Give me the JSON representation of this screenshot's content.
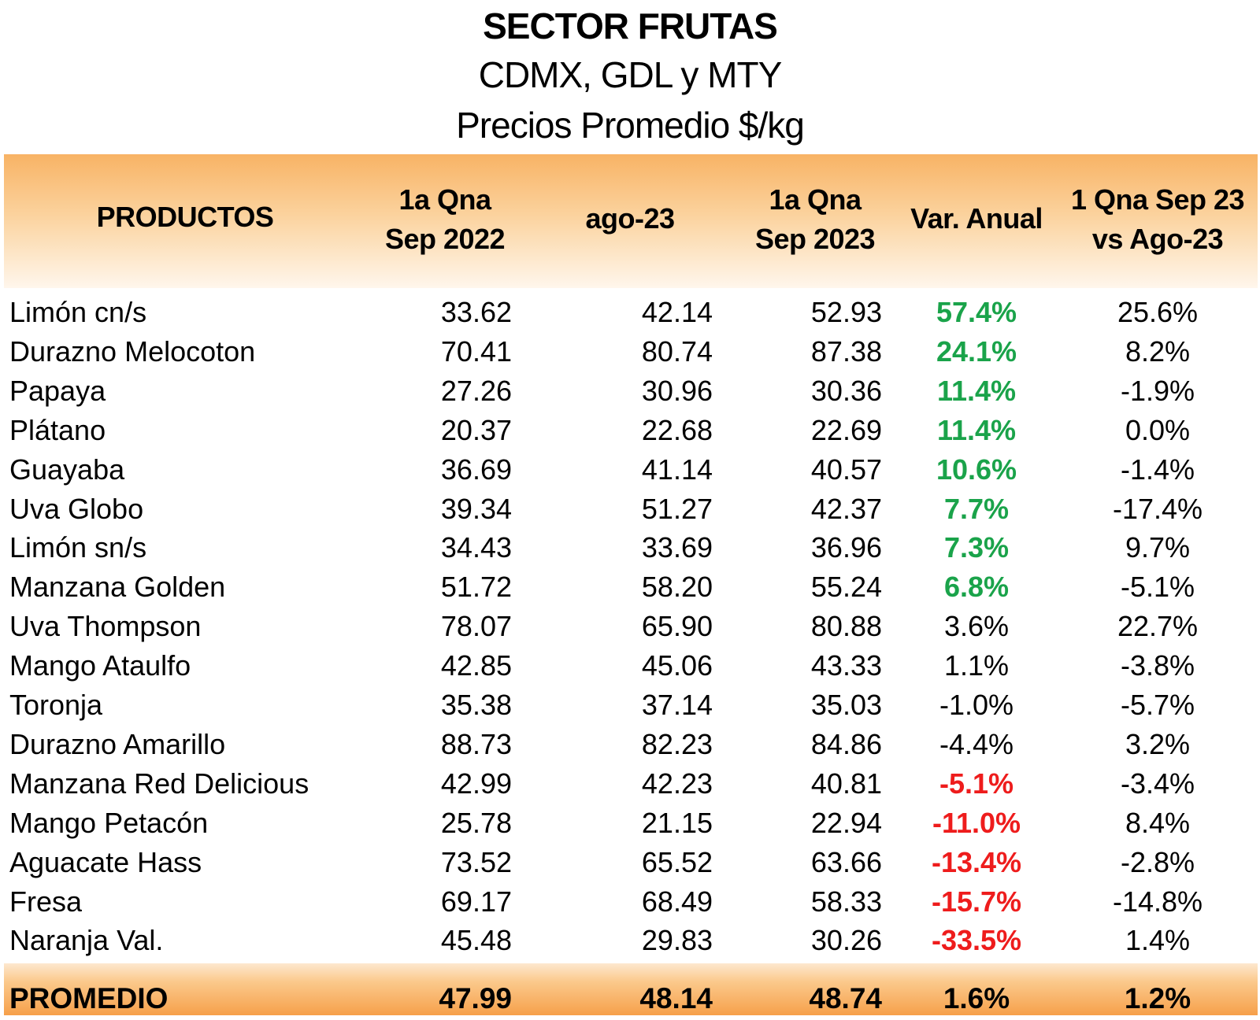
{
  "titles": {
    "line1": "SECTOR FRUTAS",
    "line2": "CDMX, GDL y MTY",
    "line3": "Precios Promedio $/kg"
  },
  "header": {
    "productos": "PRODUCTOS",
    "col1_line1": "1a Qna",
    "col1_line2": "Sep 2022",
    "col2": "ago-23",
    "col3_line1": "1a Qna",
    "col3_line2": "Sep 2023",
    "col4": "Var. Anual",
    "col5_line1": "1 Qna Sep 23",
    "col5_line2": "vs Ago-23"
  },
  "colors": {
    "positive": "#1aa34a",
    "negative": "#ee1c1c",
    "header_band": "#f8b365",
    "footer_band": "#f6a04a"
  },
  "rows": [
    {
      "name": "Limón cn/s",
      "sep2022": "33.62",
      "ago23": "42.14",
      "sep2023": "52.93",
      "var_anual": "57.4%",
      "var_anual_style": "green",
      "vs_ago": "25.6%"
    },
    {
      "name": "Durazno Melocoton",
      "sep2022": "70.41",
      "ago23": "80.74",
      "sep2023": "87.38",
      "var_anual": "24.1%",
      "var_anual_style": "green",
      "vs_ago": "8.2%"
    },
    {
      "name": "Papaya",
      "sep2022": "27.26",
      "ago23": "30.96",
      "sep2023": "30.36",
      "var_anual": "11.4%",
      "var_anual_style": "green",
      "vs_ago": "-1.9%"
    },
    {
      "name": "Plátano",
      "sep2022": "20.37",
      "ago23": "22.68",
      "sep2023": "22.69",
      "var_anual": "11.4%",
      "var_anual_style": "green",
      "vs_ago": "0.0%"
    },
    {
      "name": "Guayaba",
      "sep2022": "36.69",
      "ago23": "41.14",
      "sep2023": "40.57",
      "var_anual": "10.6%",
      "var_anual_style": "green",
      "vs_ago": "-1.4%"
    },
    {
      "name": "Uva Globo",
      "sep2022": "39.34",
      "ago23": "51.27",
      "sep2023": "42.37",
      "var_anual": "7.7%",
      "var_anual_style": "green",
      "vs_ago": "-17.4%"
    },
    {
      "name": "Limón sn/s",
      "sep2022": "34.43",
      "ago23": "33.69",
      "sep2023": "36.96",
      "var_anual": "7.3%",
      "var_anual_style": "green",
      "vs_ago": "9.7%"
    },
    {
      "name": "Manzana Golden",
      "sep2022": "51.72",
      "ago23": "58.20",
      "sep2023": "55.24",
      "var_anual": "6.8%",
      "var_anual_style": "green",
      "vs_ago": "-5.1%"
    },
    {
      "name": "Uva Thompson",
      "sep2022": "78.07",
      "ago23": "65.90",
      "sep2023": "80.88",
      "var_anual": "3.6%",
      "var_anual_style": "plain",
      "vs_ago": "22.7%"
    },
    {
      "name": "Mango Ataulfo",
      "sep2022": "42.85",
      "ago23": "45.06",
      "sep2023": "43.33",
      "var_anual": "1.1%",
      "var_anual_style": "plain",
      "vs_ago": "-3.8%"
    },
    {
      "name": "Toronja",
      "sep2022": "35.38",
      "ago23": "37.14",
      "sep2023": "35.03",
      "var_anual": "-1.0%",
      "var_anual_style": "plain",
      "vs_ago": "-5.7%"
    },
    {
      "name": "Durazno Amarillo",
      "sep2022": "88.73",
      "ago23": "82.23",
      "sep2023": "84.86",
      "var_anual": "-4.4%",
      "var_anual_style": "plain",
      "vs_ago": "3.2%"
    },
    {
      "name": "Manzana Red Delicious",
      "sep2022": "42.99",
      "ago23": "42.23",
      "sep2023": "40.81",
      "var_anual": "-5.1%",
      "var_anual_style": "red",
      "vs_ago": "-3.4%"
    },
    {
      "name": "Mango Petacón",
      "sep2022": "25.78",
      "ago23": "21.15",
      "sep2023": "22.94",
      "var_anual": "-11.0%",
      "var_anual_style": "red",
      "vs_ago": "8.4%"
    },
    {
      "name": "Aguacate Hass",
      "sep2022": "73.52",
      "ago23": "65.52",
      "sep2023": "63.66",
      "var_anual": "-13.4%",
      "var_anual_style": "red",
      "vs_ago": "-2.8%"
    },
    {
      "name": "Fresa",
      "sep2022": "69.17",
      "ago23": "68.49",
      "sep2023": "58.33",
      "var_anual": "-15.7%",
      "var_anual_style": "red",
      "vs_ago": "-14.8%"
    },
    {
      "name": "Naranja Val.",
      "sep2022": "45.48",
      "ago23": "29.83",
      "sep2023": "30.26",
      "var_anual": "-33.5%",
      "var_anual_style": "red",
      "vs_ago": "1.4%"
    }
  ],
  "footer": {
    "name": "PROMEDIO",
    "sep2022": "47.99",
    "ago23": "48.14",
    "sep2023": "48.74",
    "var_anual": "1.6%",
    "vs_ago": "1.2%"
  }
}
